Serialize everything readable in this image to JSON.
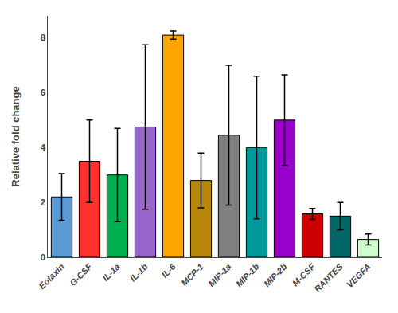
{
  "chart_data": {
    "type": "bar",
    "categories": [
      "Eotaxin",
      "G-CSF",
      "IL-1a",
      "IL-1b",
      "IL-6",
      "MCP-1",
      "MIP-1a",
      "MIP-1b",
      "MIP-2b",
      "M-CSF",
      "RANTES",
      "VEGFA"
    ],
    "values": [
      2.2,
      3.5,
      3.0,
      4.75,
      8.1,
      2.8,
      4.45,
      4.0,
      5.0,
      1.58,
      1.5,
      0.65
    ],
    "errors": [
      0.85,
      1.5,
      1.7,
      3.0,
      0.15,
      1.0,
      2.55,
      2.6,
      1.65,
      0.2,
      0.5,
      0.2
    ],
    "colors": [
      "#5B9BD5",
      "#FF3030",
      "#00B050",
      "#9966CC",
      "#FFA500",
      "#B8860B",
      "#808080",
      "#009999",
      "#9900CC",
      "#CC0000",
      "#006666",
      "#CCFFCC"
    ],
    "ylabel": "Relative fold change",
    "ylim": [
      0,
      8.8
    ],
    "yticks": [
      0,
      2,
      4,
      6,
      8
    ],
    "grid": false
  }
}
